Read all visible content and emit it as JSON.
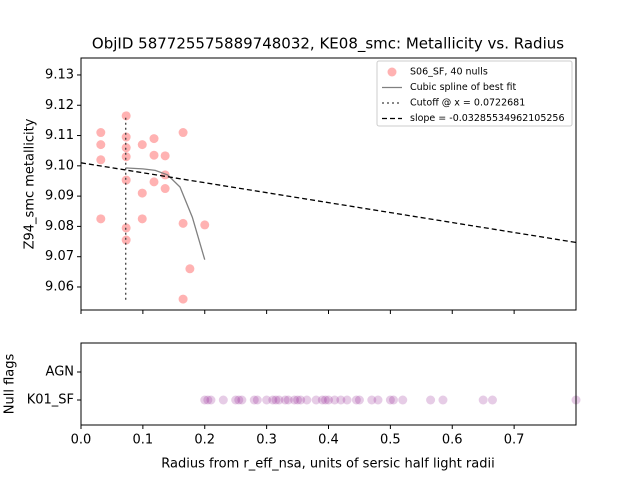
{
  "chart_data": [
    {
      "type": "scatter",
      "title": "ObjID 587725575889748032, KE08_smc: Metallicity vs. Radius",
      "y_label": "Z94_smc metallicity",
      "xlim": [
        0,
        0.8
      ],
      "xticks": [
        0,
        0.1,
        0.2,
        0.3,
        0.4,
        0.5,
        0.6,
        0.7
      ],
      "ylim": [
        9.0524,
        9.1356
      ],
      "yticks": [
        9.06,
        9.07,
        9.08,
        9.09,
        {
          "value": 9.1,
          "label": "9.10"
        },
        9.11,
        9.12,
        9.13
      ],
      "legend": "upper right",
      "series": [
        {
          "name": "S06_SF, 40 nulls",
          "kind": "scatter",
          "color": "#ff0000",
          "alpha": 0.3,
          "x": [
            0.032,
            0.032,
            0.032,
            0.032,
            0.073,
            0.073,
            0.073,
            0.073,
            0.073,
            0.073,
            0.073,
            0.099,
            0.099,
            0.099,
            0.118,
            0.118,
            0.118,
            0.136,
            0.136,
            0.136,
            0.165,
            0.165,
            0.165,
            0.176,
            0.2
          ],
          "values": [
            9.111,
            9.107,
            9.102,
            9.0825,
            9.1165,
            9.1095,
            9.106,
            9.103,
            9.0953,
            9.0795,
            9.0755,
            9.107,
            9.091,
            9.0825,
            9.109,
            9.1035,
            9.0947,
            9.1033,
            9.097,
            9.0925,
            9.111,
            9.081,
            9.056,
            9.066,
            9.0805
          ]
        },
        {
          "name": "Cubic spline of best fit",
          "kind": "line",
          "color": "#808080",
          "linestyle": "solid",
          "x": [
            0.073,
            0.1,
            0.12,
            0.14,
            0.16,
            0.18,
            0.2
          ],
          "values": [
            9.0993,
            9.099,
            9.0985,
            9.097,
            9.093,
            9.083,
            9.069
          ]
        },
        {
          "name": "Cutoff @ x = 0.0722681",
          "kind": "line",
          "color": "#404040",
          "linestyle": "dotted",
          "x": [
            0.0722681,
            0.0722681
          ],
          "values": [
            9.0558,
            9.1168
          ]
        },
        {
          "name": "slope = -0.03285534962105256",
          "kind": "line",
          "color": "#000000",
          "linestyle": "dashed",
          "x": [
            0,
            0.8
          ],
          "values": [
            9.101,
            9.0747
          ]
        }
      ]
    },
    {
      "type": "strip",
      "x_label": "Radius from r_eff_nsa, units of sersic half light radii",
      "y_label": "Null flags",
      "categories": [
        "K01_SF",
        "AGN"
      ],
      "xlim": [
        0,
        0.8
      ],
      "xticks": [
        {
          "value": 0,
          "label": "0.0"
        },
        0.1,
        0.2,
        0.3,
        0.4,
        0.5,
        0.6,
        0.7
      ],
      "series": [
        {
          "category": "K01_SF",
          "color": "#800080",
          "alpha": 0.2,
          "values": [
            0.2,
            0.205,
            0.21,
            0.23,
            0.25,
            0.255,
            0.26,
            0.28,
            0.285,
            0.3,
            0.31,
            0.315,
            0.32,
            0.33,
            0.335,
            0.345,
            0.35,
            0.355,
            0.365,
            0.38,
            0.39,
            0.395,
            0.4,
            0.41,
            0.42,
            0.43,
            0.445,
            0.45,
            0.47,
            0.48,
            0.5,
            0.505,
            0.52,
            0.565,
            0.585,
            0.65,
            0.665,
            0.8
          ]
        }
      ]
    }
  ]
}
